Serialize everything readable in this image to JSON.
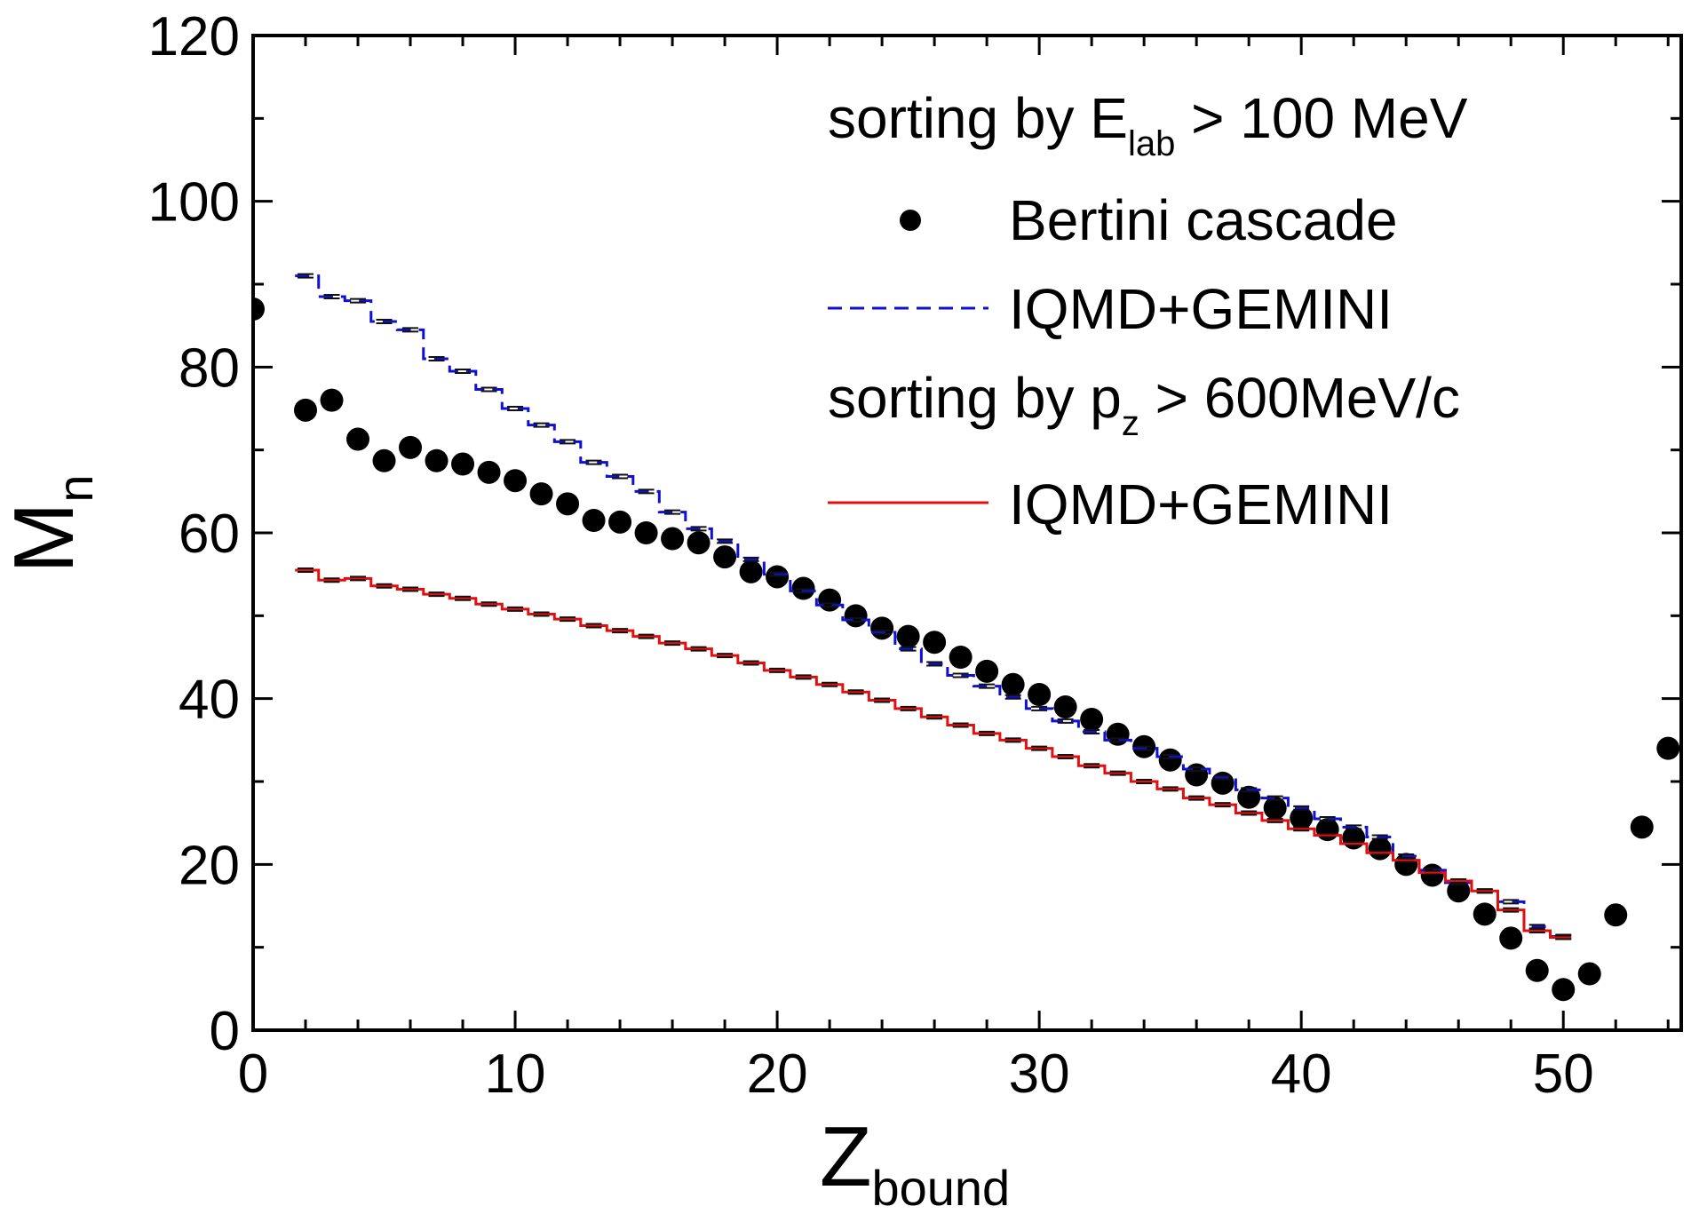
{
  "chart_data": {
    "type": "scatter",
    "xlabel": {
      "main": "Z",
      "sub": "bound"
    },
    "ylabel": {
      "main": "M",
      "sub": "n"
    },
    "xlim": [
      0,
      54.5
    ],
    "ylim": [
      0,
      120
    ],
    "xticks": [
      0,
      10,
      20,
      30,
      40,
      50
    ],
    "yticks": [
      0,
      20,
      40,
      60,
      80,
      100,
      120
    ],
    "xtick_labels": [
      "0",
      "10",
      "20",
      "30",
      "40",
      "50"
    ],
    "ytick_labels": [
      "0",
      "20",
      "40",
      "60",
      "80",
      "100",
      "120"
    ],
    "grid": false,
    "legend_position": "top-right",
    "legend_groups": [
      {
        "heading": {
          "main": "sorting by E",
          "sub": "lab",
          "tail": " > 100 MeV"
        },
        "entries": [
          "Bertini cascade",
          "IQMD+GEMINI"
        ]
      },
      {
        "heading": {
          "main": "sorting by p",
          "sub": "z",
          "tail": " > 600MeV/c"
        },
        "entries": [
          "IQMD+GEMINI"
        ]
      }
    ],
    "series": [
      {
        "name": "Bertini cascade",
        "kind": "scatter",
        "color": "#000000",
        "x": [
          0,
          2,
          3,
          4,
          5,
          6,
          7,
          8,
          9,
          10,
          11,
          12,
          13,
          14,
          15,
          16,
          17,
          18,
          19,
          20,
          21,
          22,
          23,
          24,
          25,
          26,
          27,
          28,
          29,
          30,
          31,
          32,
          33,
          34,
          35,
          36,
          37,
          38,
          39,
          40,
          41,
          42,
          43,
          44,
          45,
          46,
          47,
          48,
          49,
          50,
          51,
          52,
          53,
          54
        ],
        "y": [
          87,
          74.8,
          76,
          71.3,
          68.7,
          70.3,
          68.7,
          68.3,
          67.3,
          66.3,
          64.7,
          63.5,
          61.5,
          61.3,
          60,
          59.3,
          58.8,
          57.1,
          55.3,
          54.7,
          53.3,
          51.9,
          50,
          48.5,
          47.5,
          46.8,
          45,
          43.3,
          41.7,
          40.5,
          39,
          37.5,
          35.7,
          34.2,
          32.6,
          30.8,
          29.8,
          28.1,
          26.8,
          25.6,
          24.2,
          23.2,
          21.9,
          20,
          18.7,
          16.8,
          14,
          11.1,
          7.2,
          4.9,
          6.8,
          13.9,
          24.5,
          34
        ]
      },
      {
        "name": "IQMD+GEMINI",
        "kind": "step-dashed",
        "group": "E_lab",
        "color": "#1010d0",
        "x": [
          2,
          3,
          4,
          5,
          6,
          7,
          8,
          9,
          10,
          11,
          12,
          13,
          14,
          15,
          16,
          17,
          18,
          19,
          20,
          21,
          22,
          23,
          24,
          25,
          26,
          27,
          28,
          29,
          30,
          31,
          32,
          33,
          34,
          35,
          36,
          37,
          38,
          39,
          40,
          41,
          42,
          43,
          44,
          45,
          46,
          47,
          48,
          49,
          50
        ],
        "y": [
          91,
          88.5,
          88,
          85.5,
          84.5,
          81,
          79.5,
          77.3,
          75,
          73,
          71,
          68.5,
          66.8,
          65,
          62.5,
          60.5,
          59,
          56.8,
          55,
          53,
          51.3,
          49.5,
          48,
          46,
          44.2,
          42.8,
          41.5,
          40.2,
          38.8,
          37.3,
          36,
          35,
          34,
          33,
          31.5,
          30.5,
          29,
          28,
          26.8,
          25.5,
          24.5,
          23.3,
          21,
          19.3,
          17.8,
          16.8,
          15.5,
          12.5,
          11.3
        ]
      },
      {
        "name": "IQMD+GEMINI",
        "kind": "step-solid",
        "group": "p_z",
        "color": "#e01010",
        "x": [
          2,
          3,
          4,
          5,
          6,
          7,
          8,
          9,
          10,
          11,
          12,
          13,
          14,
          15,
          16,
          17,
          18,
          19,
          20,
          21,
          22,
          23,
          24,
          25,
          26,
          27,
          28,
          29,
          30,
          31,
          32,
          33,
          34,
          35,
          36,
          37,
          38,
          39,
          40,
          41,
          42,
          43,
          44,
          45,
          46,
          47,
          48,
          49,
          50
        ],
        "y": [
          55.5,
          54.3,
          54.5,
          53.6,
          53.2,
          52.6,
          52.1,
          51.4,
          50.8,
          50.2,
          49.6,
          48.8,
          48.2,
          47.5,
          46.7,
          46,
          45.2,
          44.3,
          43.4,
          42.6,
          41.7,
          40.8,
          39.8,
          38.8,
          37.8,
          36.8,
          35.8,
          35,
          34,
          33,
          31.9,
          31,
          30,
          29.1,
          28,
          27.2,
          26.2,
          25.3,
          24.3,
          23.5,
          22.5,
          21.4,
          20.5,
          19,
          18,
          16.8,
          14.5,
          12,
          11.2
        ]
      }
    ]
  }
}
